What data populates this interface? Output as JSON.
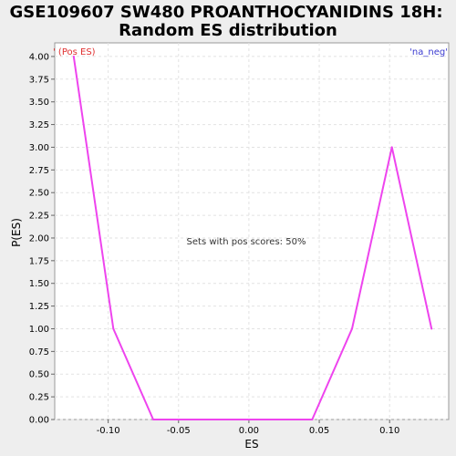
{
  "chart_data": {
    "type": "line",
    "title_line1": "GSE109607 SW480 PROANTHOCYANIDINS 18H:",
    "title_line2": "Random ES distribution",
    "xlabel": "ES",
    "ylabel": "P(ES)",
    "xlim": [
      -0.138,
      0.142
    ],
    "ylim": [
      0,
      4.15
    ],
    "xticks": [
      -0.1,
      -0.05,
      0.0,
      0.05,
      0.1
    ],
    "xtick_labels": [
      "-0.10",
      "-0.05",
      "0.00",
      "0.05",
      "0.10"
    ],
    "yticks": [
      0,
      0.25,
      0.5,
      0.75,
      1.0,
      1.25,
      1.5,
      1.75,
      2.0,
      2.25,
      2.5,
      2.75,
      3.0,
      3.25,
      3.5,
      3.75,
      4.0
    ],
    "ytick_labels": [
      "0.00",
      "0.25",
      "0.50",
      "0.75",
      "1.00",
      "1.25",
      "1.50",
      "1.75",
      "2.00",
      "2.25",
      "2.50",
      "2.75",
      "3.00",
      "3.25",
      "3.50",
      "3.75",
      "4.00"
    ],
    "grid": true,
    "series": [
      {
        "color": "#ee44ee",
        "x": [
          -0.1245,
          -0.0963,
          -0.068,
          -0.0398,
          -0.0115,
          0.0168,
          0.045,
          0.0733,
          0.1016,
          0.1298
        ],
        "values": [
          4.0,
          1.0,
          0.0,
          0.0,
          0.0,
          0.0,
          0.0,
          1.0,
          3.0,
          1.0
        ]
      }
    ],
    "annotation": "Sets with pos scores: 50%",
    "legend_left": "' (Pos ES)",
    "legend_right": "'na_neg'"
  }
}
